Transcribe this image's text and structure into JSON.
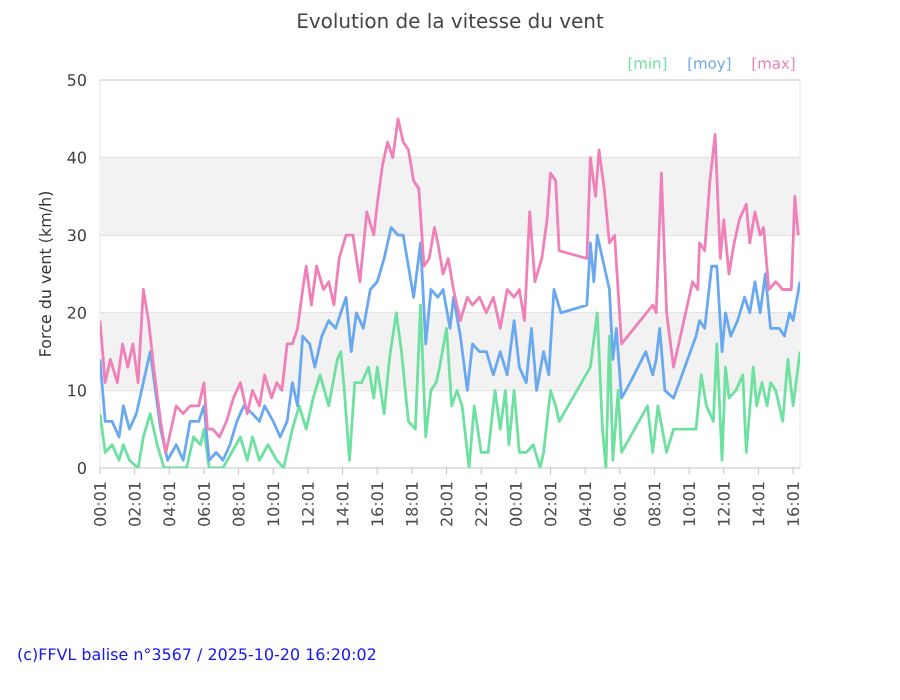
{
  "chart_data": {
    "type": "line",
    "title": "Evolution de la vitesse du vent",
    "ylabel": "Force du vent (km/h)",
    "xlim": [
      "2025-10-19T00:01",
      "2025-10-20T16:25"
    ],
    "ylim": [
      0,
      50
    ],
    "yticks": [
      0,
      10,
      20,
      30,
      40,
      50
    ],
    "xticks": [
      {
        "value": "2025-10-19T00:01",
        "label": "00:01"
      },
      {
        "value": "2025-10-19T02:01",
        "label": "02:01"
      },
      {
        "value": "2025-10-19T04:01",
        "label": "04:01"
      },
      {
        "value": "2025-10-19T06:01",
        "label": "06:01"
      },
      {
        "value": "2025-10-19T08:01",
        "label": "08:01"
      },
      {
        "value": "2025-10-19T10:01",
        "label": "10:01"
      },
      {
        "value": "2025-10-19T12:01",
        "label": "12:01"
      },
      {
        "value": "2025-10-19T14:01",
        "label": "14:01"
      },
      {
        "value": "2025-10-19T16:01",
        "label": "16:01"
      },
      {
        "value": "2025-10-19T18:01",
        "label": "18:01"
      },
      {
        "value": "2025-10-19T20:01",
        "label": "20:01"
      },
      {
        "value": "2025-10-19T22:01",
        "label": "22:01"
      },
      {
        "value": "2025-10-20T00:01",
        "label": "00:01"
      },
      {
        "value": "2025-10-20T02:01",
        "label": "02:01"
      },
      {
        "value": "2025-10-20T04:01",
        "label": "04:01"
      },
      {
        "value": "2025-10-20T06:01",
        "label": "06:01"
      },
      {
        "value": "2025-10-20T08:01",
        "label": "08:01"
      },
      {
        "value": "2025-10-20T10:01",
        "label": "10:01"
      },
      {
        "value": "2025-10-20T12:01",
        "label": "12:01"
      },
      {
        "value": "2025-10-20T14:01",
        "label": "14:01"
      },
      {
        "value": "2025-10-20T16:01",
        "label": "16:01"
      }
    ],
    "grid": "y",
    "legend": "top right",
    "line_style": "solid",
    "bands": [
      {
        "axis": "y",
        "from": 10,
        "to": 20,
        "color": "#f2f2f2"
      },
      {
        "axis": "y",
        "from": 30,
        "to": 40,
        "color": "#f2f2f2"
      }
    ],
    "annotations": [
      "(c)FFVL balise n°3567 / 2025-10-20 16:20:02"
    ],
    "series": [
      {
        "name": "[min]",
        "color": "#6ee0a0",
        "x": [
          "2025-10-19T00:01",
          "2025-10-19T00:19",
          "2025-10-19T00:43",
          "2025-10-19T01:07",
          "2025-10-19T01:22",
          "2025-10-19T01:43",
          "2025-10-19T02:13",
          "2025-10-19T02:31",
          "2025-10-19T02:55",
          "2025-10-19T03:19",
          "2025-10-19T03:43",
          "2025-10-19T04:25",
          "2025-10-19T05:01",
          "2025-10-19T05:25",
          "2025-10-19T05:49",
          "2025-10-19T06:01",
          "2025-10-19T06:19",
          "2025-10-19T07:07",
          "2025-10-19T07:37",
          "2025-10-19T08:07",
          "2025-10-19T08:31",
          "2025-10-19T08:49",
          "2025-10-19T09:13",
          "2025-10-19T09:43",
          "2025-10-19T10:13",
          "2025-10-19T10:37",
          "2025-10-19T11:07",
          "2025-10-19T11:31",
          "2025-10-19T11:55",
          "2025-10-19T12:19",
          "2025-10-19T12:43",
          "2025-10-19T13:13",
          "2025-10-19T13:43",
          "2025-10-19T13:55",
          "2025-10-19T14:07",
          "2025-10-19T14:25",
          "2025-10-19T14:43",
          "2025-10-19T15:07",
          "2025-10-19T15:31",
          "2025-10-19T15:49",
          "2025-10-19T16:01",
          "2025-10-19T16:25",
          "2025-10-19T16:43",
          "2025-10-19T17:07",
          "2025-10-19T17:25",
          "2025-10-19T17:49",
          "2025-10-19T18:13",
          "2025-10-19T18:31",
          "2025-10-19T18:49",
          "2025-10-19T19:07",
          "2025-10-19T19:25",
          "2025-10-19T19:37",
          "2025-10-19T20:01",
          "2025-10-19T20:19",
          "2025-10-19T20:37",
          "2025-10-19T20:55",
          "2025-10-19T21:19",
          "2025-10-19T21:37",
          "2025-10-19T22:01",
          "2025-10-19T22:25",
          "2025-10-19T22:49",
          "2025-10-19T23:07",
          "2025-10-19T23:25",
          "2025-10-19T23:37",
          "2025-10-19T23:55",
          "2025-10-20T00:13",
          "2025-10-20T00:37",
          "2025-10-20T01:01",
          "2025-10-20T01:25",
          "2025-10-20T01:37",
          "2025-10-20T02:01",
          "2025-10-20T02:19",
          "2025-10-20T02:31",
          "2025-10-20T04:19",
          "2025-10-20T04:43",
          "2025-10-20T05:01",
          "2025-10-20T05:13",
          "2025-10-20T05:25",
          "2025-10-20T05:37",
          "2025-10-20T05:55",
          "2025-10-20T06:07",
          "2025-10-20T07:37",
          "2025-10-20T07:55",
          "2025-10-20T08:13",
          "2025-10-20T08:43",
          "2025-10-20T09:07",
          "2025-10-20T10:25",
          "2025-10-20T10:43",
          "2025-10-20T11:01",
          "2025-10-20T11:25",
          "2025-10-20T11:37",
          "2025-10-20T11:55",
          "2025-10-20T12:07",
          "2025-10-20T12:19",
          "2025-10-20T12:43",
          "2025-10-20T13:07",
          "2025-10-20T13:19",
          "2025-10-20T13:43",
          "2025-10-20T13:55",
          "2025-10-20T14:13",
          "2025-10-20T14:31",
          "2025-10-20T14:43",
          "2025-10-20T15:01",
          "2025-10-20T15:25",
          "2025-10-20T15:43",
          "2025-10-20T16:01",
          "2025-10-20T16:25"
        ],
        "values": [
          7,
          2,
          3,
          1,
          3,
          1,
          0,
          4,
          7,
          3,
          0,
          0,
          0,
          4,
          3,
          5,
          0,
          0,
          2,
          4,
          1,
          4,
          1,
          3,
          1,
          0,
          5,
          8,
          5,
          9,
          12,
          8,
          14,
          15,
          10,
          1,
          11,
          11,
          13,
          9,
          13,
          7,
          14,
          20,
          15,
          6,
          5,
          21,
          4,
          10,
          11,
          13,
          18,
          8,
          10,
          8,
          0,
          8,
          2,
          2,
          10,
          5,
          10,
          3,
          10,
          2,
          2,
          3,
          0,
          2,
          10,
          8,
          6,
          13,
          20,
          5,
          0,
          17,
          1,
          10,
          2,
          8,
          2,
          8,
          2,
          5,
          5,
          12,
          8,
          6,
          16,
          1,
          13,
          9,
          10,
          12,
          2,
          13,
          8,
          11,
          8,
          11,
          10,
          6,
          14,
          8,
          15
        ]
      },
      {
        "name": "[moy]",
        "color": "#6aa8f0",
        "x": [
          "2025-10-19T00:01",
          "2025-10-19T00:19",
          "2025-10-19T00:43",
          "2025-10-19T01:07",
          "2025-10-19T01:22",
          "2025-10-19T01:43",
          "2025-10-19T02:07",
          "2025-10-19T02:31",
          "2025-10-19T02:55",
          "2025-10-19T03:13",
          "2025-10-19T03:31",
          "2025-10-19T03:55",
          "2025-10-19T04:25",
          "2025-10-19T04:49",
          "2025-10-19T05:13",
          "2025-10-19T05:43",
          "2025-10-19T06:01",
          "2025-10-19T06:19",
          "2025-10-19T06:43",
          "2025-10-19T07:07",
          "2025-10-19T07:31",
          "2025-10-19T07:55",
          "2025-10-19T08:19",
          "2025-10-19T08:49",
          "2025-10-19T09:13",
          "2025-10-19T09:31",
          "2025-10-19T10:01",
          "2025-10-19T10:25",
          "2025-10-19T10:49",
          "2025-10-19T11:07",
          "2025-10-19T11:25",
          "2025-10-19T11:43",
          "2025-10-19T12:07",
          "2025-10-19T12:25",
          "2025-10-19T12:49",
          "2025-10-19T13:13",
          "2025-10-19T13:37",
          "2025-10-19T13:55",
          "2025-10-19T14:13",
          "2025-10-19T14:31",
          "2025-10-19T14:49",
          "2025-10-19T15:13",
          "2025-10-19T15:37",
          "2025-10-19T16:01",
          "2025-10-19T16:25",
          "2025-10-19T16:49",
          "2025-10-19T17:13",
          "2025-10-19T17:31",
          "2025-10-19T17:49",
          "2025-10-19T18:07",
          "2025-10-19T18:31",
          "2025-10-19T18:49",
          "2025-10-19T19:07",
          "2025-10-19T19:31",
          "2025-10-19T19:49",
          "2025-10-19T20:13",
          "2025-10-19T20:25",
          "2025-10-19T20:49",
          "2025-10-19T21:13",
          "2025-10-19T21:31",
          "2025-10-19T21:55",
          "2025-10-19T22:19",
          "2025-10-19T22:43",
          "2025-10-19T23:07",
          "2025-10-19T23:31",
          "2025-10-19T23:55",
          "2025-10-20T00:13",
          "2025-10-20T00:37",
          "2025-10-20T00:55",
          "2025-10-20T01:13",
          "2025-10-20T01:37",
          "2025-10-20T01:55",
          "2025-10-20T02:13",
          "2025-10-20T02:37",
          "2025-10-20T04:07",
          "2025-10-20T04:19",
          "2025-10-20T04:31",
          "2025-10-20T04:43",
          "2025-10-20T05:01",
          "2025-10-20T05:25",
          "2025-10-20T05:37",
          "2025-10-20T05:49",
          "2025-10-20T06:07",
          "2025-10-20T06:37",
          "2025-10-20T07:31",
          "2025-10-20T07:55",
          "2025-10-20T08:07",
          "2025-10-20T08:19",
          "2025-10-20T08:37",
          "2025-10-20T09:07",
          "2025-10-20T10:25",
          "2025-10-20T10:37",
          "2025-10-20T10:55",
          "2025-10-20T11:19",
          "2025-10-20T11:37",
          "2025-10-20T11:55",
          "2025-10-20T12:07",
          "2025-10-20T12:25",
          "2025-10-20T12:49",
          "2025-10-20T13:13",
          "2025-10-20T13:31",
          "2025-10-20T13:49",
          "2025-10-20T14:07",
          "2025-10-20T14:25",
          "2025-10-20T14:43",
          "2025-10-20T15:13",
          "2025-10-20T15:31",
          "2025-10-20T15:49",
          "2025-10-20T16:01",
          "2025-10-20T16:25"
        ],
        "values": [
          14,
          6,
          6,
          4,
          8,
          5,
          7,
          11,
          15,
          10,
          5,
          1,
          3,
          1,
          6,
          6,
          8,
          1,
          2,
          1,
          3,
          6,
          8,
          7,
          6,
          8,
          6,
          4,
          6,
          11,
          8,
          17,
          16,
          13,
          17,
          19,
          18,
          20,
          22,
          15,
          20,
          18,
          23,
          24,
          27,
          31,
          30,
          30,
          26,
          22,
          29,
          16,
          23,
          22,
          23,
          18,
          22,
          17,
          10,
          16,
          15,
          15,
          12,
          15,
          12,
          19,
          13,
          11,
          18,
          10,
          15,
          12,
          23,
          20,
          21,
          29,
          24,
          30,
          27,
          23,
          14,
          18,
          9,
          11,
          15,
          12,
          14,
          18,
          10,
          9,
          17,
          19,
          18,
          26,
          26,
          15,
          20,
          17,
          19,
          22,
          20,
          24,
          20,
          25,
          18,
          18,
          17,
          20,
          19,
          24
        ]
      },
      {
        "name": "[max]",
        "color": "#f080b8",
        "x": [
          "2025-10-19T00:01",
          "2025-10-19T00:19",
          "2025-10-19T00:37",
          "2025-10-19T01:01",
          "2025-10-19T01:19",
          "2025-10-19T01:37",
          "2025-10-19T01:55",
          "2025-10-19T02:13",
          "2025-10-19T02:31",
          "2025-10-19T02:49",
          "2025-10-19T03:10",
          "2025-10-19T03:31",
          "2025-10-19T03:49",
          "2025-10-19T04:01",
          "2025-10-19T04:25",
          "2025-10-19T04:49",
          "2025-10-19T05:13",
          "2025-10-19T05:43",
          "2025-10-19T06:01",
          "2025-10-19T06:13",
          "2025-10-19T06:31",
          "2025-10-19T06:55",
          "2025-10-19T07:19",
          "2025-10-19T07:43",
          "2025-10-19T08:07",
          "2025-10-19T08:31",
          "2025-10-19T08:49",
          "2025-10-19T09:13",
          "2025-10-19T09:31",
          "2025-10-19T09:55",
          "2025-10-19T10:13",
          "2025-10-19T10:31",
          "2025-10-19T10:49",
          "2025-10-19T11:07",
          "2025-10-19T11:25",
          "2025-10-19T11:43",
          "2025-10-19T11:55",
          "2025-10-19T12:13",
          "2025-10-19T12:31",
          "2025-10-19T12:55",
          "2025-10-19T13:13",
          "2025-10-19T13:31",
          "2025-10-19T13:49",
          "2025-10-19T14:13",
          "2025-10-19T14:37",
          "2025-10-19T15:01",
          "2025-10-19T15:25",
          "2025-10-19T15:49",
          "2025-10-19T16:01",
          "2025-10-19T16:19",
          "2025-10-19T16:37",
          "2025-10-19T16:55",
          "2025-10-19T17:13",
          "2025-10-19T17:31",
          "2025-10-19T17:49",
          "2025-10-19T18:07",
          "2025-10-19T18:25",
          "2025-10-19T18:43",
          "2025-10-19T19:01",
          "2025-10-19T19:19",
          "2025-10-19T19:31",
          "2025-10-19T19:49",
          "2025-10-19T20:07",
          "2025-10-19T20:25",
          "2025-10-19T20:49",
          "2025-10-19T21:13",
          "2025-10-19T21:31",
          "2025-10-19T21:55",
          "2025-10-19T22:19",
          "2025-10-19T22:43",
          "2025-10-19T23:07",
          "2025-10-19T23:31",
          "2025-10-19T23:55",
          "2025-10-20T00:13",
          "2025-10-20T00:31",
          "2025-10-20T00:49",
          "2025-10-20T01:07",
          "2025-10-20T01:31",
          "2025-10-20T01:49",
          "2025-10-20T02:01",
          "2025-10-20T02:19",
          "2025-10-20T02:31",
          "2025-10-20T04:07",
          "2025-10-20T04:19",
          "2025-10-20T04:37",
          "2025-10-20T04:49",
          "2025-10-20T05:07",
          "2025-10-20T05:25",
          "2025-10-20T05:43",
          "2025-10-20T06:07",
          "2025-10-20T07:55",
          "2025-10-20T08:07",
          "2025-10-20T08:25",
          "2025-10-20T08:43",
          "2025-10-20T09:07",
          "2025-10-20T10:13",
          "2025-10-20T10:31",
          "2025-10-20T10:37",
          "2025-10-20T10:55",
          "2025-10-20T11:13",
          "2025-10-20T11:31",
          "2025-10-20T11:49",
          "2025-10-20T12:01",
          "2025-10-20T12:19",
          "2025-10-20T12:37",
          "2025-10-20T12:55",
          "2025-10-20T13:19",
          "2025-10-20T13:31",
          "2025-10-20T13:49",
          "2025-10-20T14:07",
          "2025-10-20T14:19",
          "2025-10-20T14:37",
          "2025-10-20T15:01",
          "2025-10-20T15:25",
          "2025-10-20T15:43",
          "2025-10-20T15:55",
          "2025-10-20T16:07",
          "2025-10-20T16:19"
        ],
        "values": [
          19,
          11,
          14,
          11,
          16,
          13,
          16,
          11,
          23,
          19,
          12,
          6,
          2,
          4,
          8,
          7,
          8,
          8,
          11,
          5,
          5,
          4,
          6,
          9,
          11,
          7,
          10,
          8,
          12,
          9,
          11,
          10,
          16,
          16,
          18,
          23,
          26,
          21,
          26,
          23,
          24,
          21,
          27,
          30,
          30,
          24,
          33,
          30,
          34,
          39,
          42,
          40,
          45,
          42,
          41,
          37,
          36,
          26,
          27,
          31,
          29,
          25,
          27,
          23,
          19,
          22,
          21,
          22,
          20,
          22,
          18,
          23,
          22,
          23,
          19,
          33,
          24,
          27,
          32,
          38,
          37,
          28,
          27,
          40,
          35,
          41,
          36,
          29,
          30,
          16,
          21,
          20,
          38,
          20,
          13,
          24,
          23,
          29,
          28,
          37,
          43,
          27,
          32,
          25,
          29,
          32,
          34,
          29,
          33,
          30,
          31,
          23,
          24,
          23,
          23,
          23,
          35,
          30
        ]
      }
    ]
  }
}
